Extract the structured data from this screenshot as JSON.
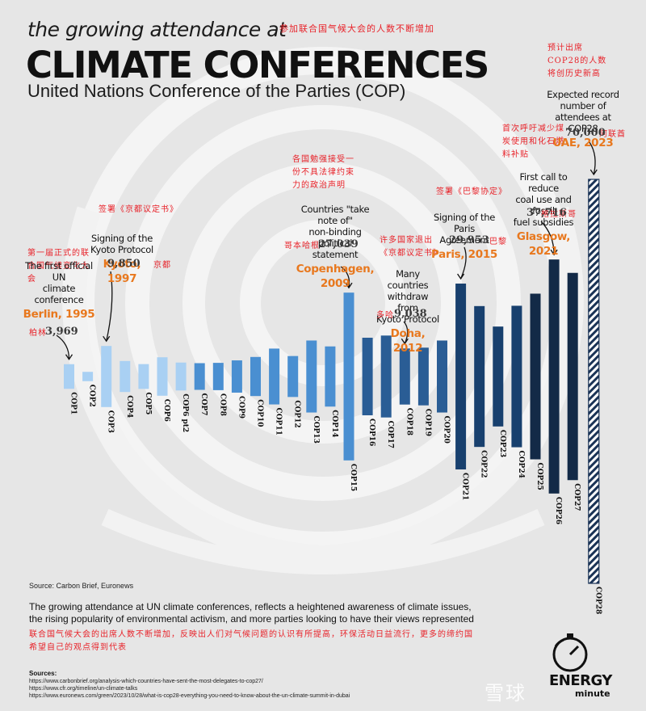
{
  "header": {
    "kicker": "the growing attendance at",
    "title": "CLIMATE CONFERENCES",
    "subtitle": "United Nations Conference of the Parties (COP)",
    "title_cn": "参加联合国气候大会的人数不断增加"
  },
  "colors": {
    "light_blue": "#a9d0f3",
    "mid_blue": "#4a8fd1",
    "dark_blue": "#18406e",
    "navy": "#132a47",
    "city_orange": "#e8781e",
    "chinese_red": "#e8232a"
  },
  "chart_data": {
    "type": "bar",
    "categories": [
      "COP1",
      "COP2",
      "COP3",
      "COP4",
      "COP5",
      "COP6",
      "COP6 pt2",
      "COP7",
      "COP8",
      "COP9",
      "COP10",
      "COP11",
      "COP12",
      "COP13",
      "COP14",
      "COP15",
      "COP16",
      "COP17",
      "COP18",
      "COP19",
      "COP20",
      "COP21",
      "COP22",
      "COP23",
      "COP24",
      "COP25",
      "COP26",
      "COP27",
      "COP28"
    ],
    "values": [
      3969,
      1500,
      9850,
      5000,
      4000,
      6200,
      4500,
      4300,
      4400,
      5200,
      6300,
      9000,
      6600,
      11600,
      9700,
      27039,
      12500,
      13200,
      9038,
      9300,
      11600,
      29953,
      22700,
      16100,
      22800,
      26700,
      37716,
      33400,
      70000
    ],
    "pattern_bar": "COP28",
    "annotations": [
      {
        "cop": "COP1",
        "lines": [
          "The first official UN",
          "climate conference"
        ],
        "city": "Berlin, 1995",
        "count": "3,969",
        "cn": [
          "第一届正式的联",
          "合国气候变化大",
          "会"
        ],
        "cn_city": "柏林"
      },
      {
        "cop": "COP3",
        "lines": [
          "Signing of the",
          "Kyoto Protocol"
        ],
        "city": "Kyoto, 1997",
        "count": "9,850",
        "cn": [
          "签署《京都议定书》"
        ],
        "cn_city": "京都"
      },
      {
        "cop": "COP15",
        "lines": [
          "Countries \"take note of\"",
          "non-binding political",
          "statement"
        ],
        "city": "Copenhagen, 2009",
        "count": "27,039",
        "cn": [
          "各国勉强接受一",
          "份不具法律约束",
          "力的政治声明"
        ],
        "cn_city": "哥本哈根"
      },
      {
        "cop": "COP18",
        "lines": [
          "Many countries",
          "withdraw from",
          "Kyoto Protocol"
        ],
        "city": "Doha, 2012",
        "count": "9,038",
        "cn": [
          "许多国家退出",
          "《京都议定书》"
        ],
        "cn_city": "多哈"
      },
      {
        "cop": "COP21",
        "lines": [
          "Signing of the",
          "Paris Agreement"
        ],
        "city": "Paris, 2015",
        "count": "29,953",
        "cn": [
          "签署《巴黎协定》"
        ],
        "cn_city": "巴黎"
      },
      {
        "cop": "COP26",
        "lines": [
          "First call to reduce",
          "coal use and fossil",
          "fuel subsidies"
        ],
        "city": "Glasgow, 2021",
        "count": "37,716",
        "cn": [
          "首次呼吁减少煤",
          "炭使用和化石燃",
          "料补贴"
        ],
        "cn_city": "格拉斯哥"
      },
      {
        "cop": "COP28",
        "lines": [
          "Expected record",
          "number of",
          "attendees at COP28"
        ],
        "city": "UAE, 2023",
        "count": "70,000",
        "cn": [
          "预计出席",
          "COP28的人数",
          "将创历史新高"
        ],
        "cn_city": "阿联酋"
      }
    ]
  },
  "footer": {
    "source": "Source: Carbon Brief, Euronews",
    "description": "The growing attendance at UN climate conferences, reflects a heightened awareness of climate issues, the rising popularity of environmental activism, and more parties looking to have their views represented",
    "description_cn": "联合国气候大会的出席人数不断增加，反映出人们对气候问题的认识有所提高，环保活动日益流行，更多的缔约国希望自己的观点得到代表",
    "sources_heading": "Sources:",
    "sources": [
      "https://www.carbonbrief.org/analysis-which-countries-have-sent-the-most-delegates-to-cop27/",
      "https://www.cfr.org/timeline/un-climate-talks",
      "https://www.euronews.com/green/2023/10/28/what-is-cop28-everything-you-need-to-know-about-the-un-climate-summit-in-dubai"
    ],
    "logo_name": "ENERGY",
    "logo_sub": "minute",
    "watermark": "雪球"
  }
}
